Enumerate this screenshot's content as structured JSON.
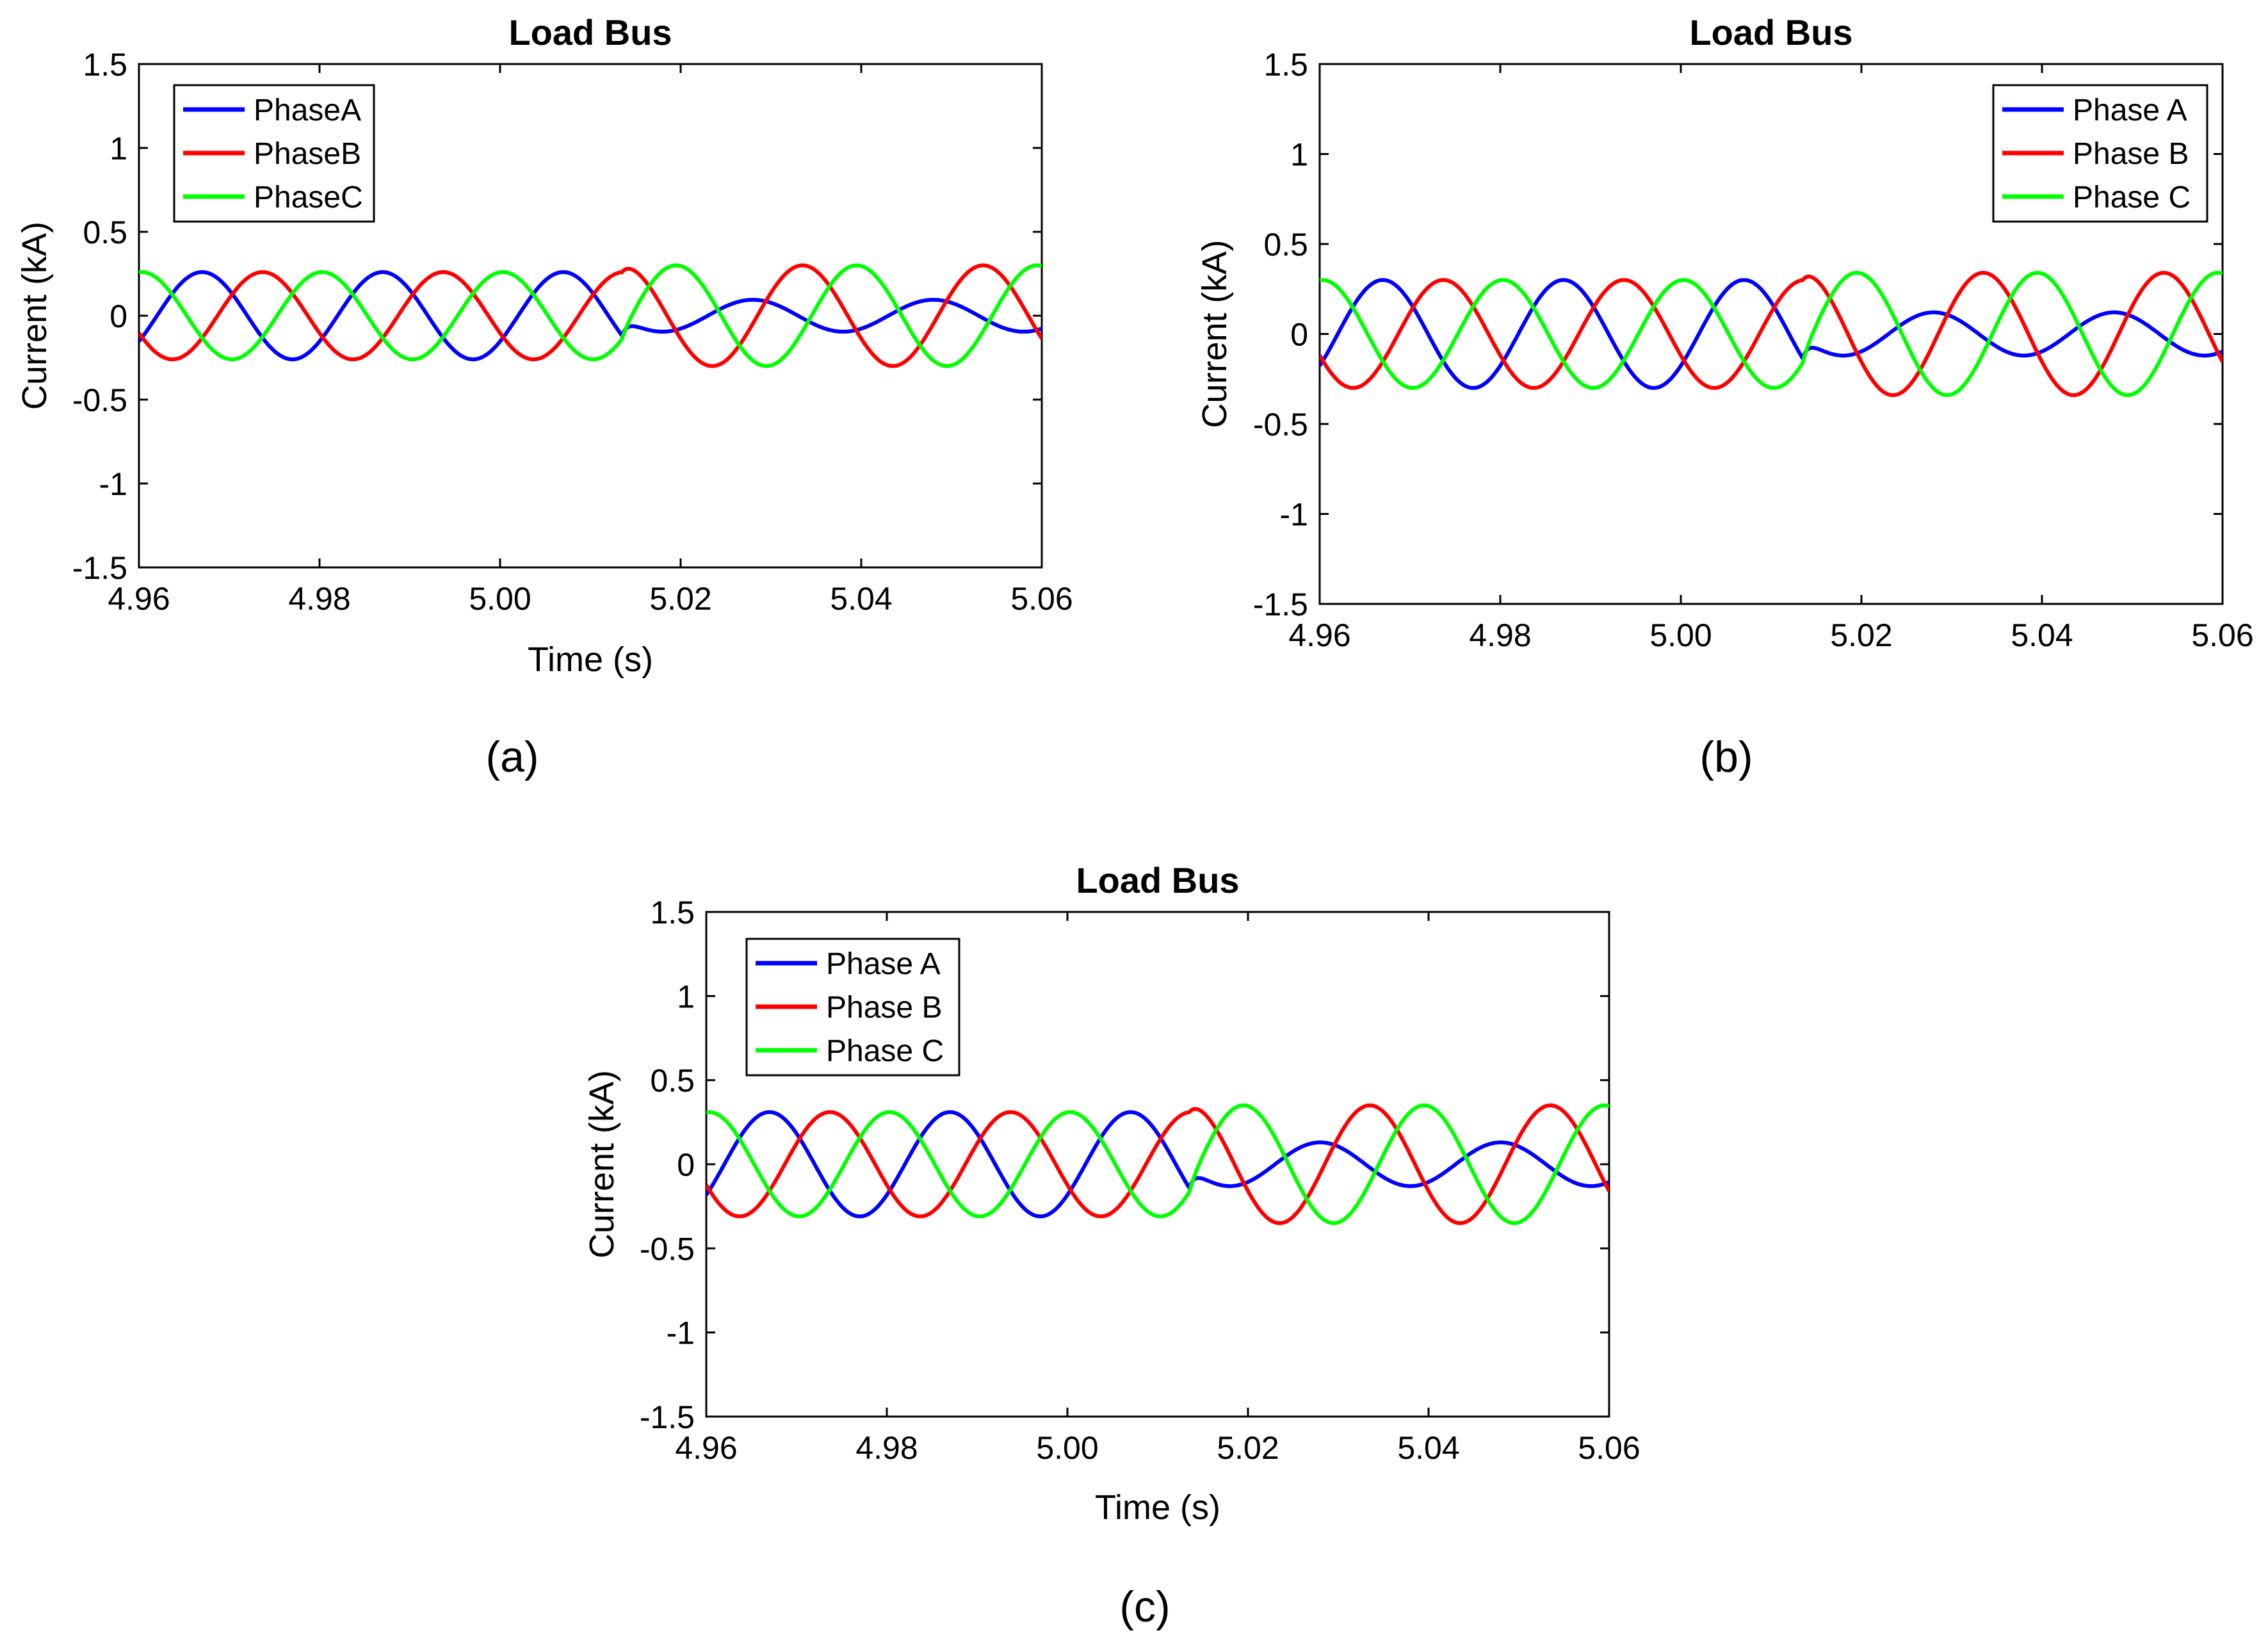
{
  "colors": {
    "phase_a": "#0000ff",
    "phase_b": "#ff0000",
    "phase_c": "#00ff00",
    "axis": "#000000"
  },
  "chart_data": [
    {
      "type": "line",
      "caption": "(a)",
      "title": "Load Bus",
      "xlabel": "Time (s)",
      "ylabel": "Current (kA)",
      "xlim": [
        4.96,
        5.06
      ],
      "ylim": [
        -1.5,
        1.5
      ],
      "x_ticks": [
        "4.96",
        "4.98",
        "5.00",
        "5.02",
        "5.04",
        "5.06"
      ],
      "y_ticks": [
        "1.5",
        "1",
        "0.5",
        "0",
        "-0.5",
        "-1",
        "-1.5"
      ],
      "legend_position": "top-left",
      "legend": [
        "PhaseA",
        "PhaseB",
        "PhaseC"
      ],
      "fault_time": 5.0135,
      "frequency_hz": 50,
      "series": [
        {
          "name": "PhaseA",
          "pre_amplitude": 0.26,
          "post_amplitude": 0.095,
          "first_peak_time": 4.967,
          "post_peak_time": 5.028
        },
        {
          "name": "PhaseB",
          "pre_amplitude": 0.26,
          "post_amplitude": 0.3,
          "first_peak_time": 4.9737,
          "post_peak_time": 5.0335
        },
        {
          "name": "PhaseC",
          "pre_amplitude": 0.26,
          "post_amplitude": 0.3,
          "first_peak_time": 4.9603,
          "post_peak_time": 5.0195
        }
      ]
    },
    {
      "type": "line",
      "caption": "(b)",
      "title": "Load Bus",
      "xlabel": "",
      "ylabel": "Current (kA)",
      "xlim": [
        4.96,
        5.06
      ],
      "ylim": [
        -1.5,
        1.5
      ],
      "x_ticks": [
        "4.96",
        "4.98",
        "5.00",
        "5.02",
        "5.04",
        "5.06"
      ],
      "y_ticks": [
        "1.5",
        "1",
        "0.5",
        "0",
        "-0.5",
        "-1",
        "-1.5"
      ],
      "legend_position": "top-right",
      "legend": [
        "Phase A",
        "Phase B",
        "Phase C"
      ],
      "fault_time": 5.0135,
      "frequency_hz": 50,
      "series": [
        {
          "name": "Phase A",
          "pre_amplitude": 0.3,
          "post_amplitude": 0.12,
          "first_peak_time": 4.967,
          "post_peak_time": 5.028
        },
        {
          "name": "Phase B",
          "pre_amplitude": 0.3,
          "post_amplitude": 0.34,
          "first_peak_time": 4.9737,
          "post_peak_time": 5.0335
        },
        {
          "name": "Phase C",
          "pre_amplitude": 0.3,
          "post_amplitude": 0.34,
          "first_peak_time": 4.9603,
          "post_peak_time": 5.0195
        }
      ]
    },
    {
      "type": "line",
      "caption": "(c)",
      "title": "Load Bus",
      "xlabel": "Time (s)",
      "ylabel": "Current (kA)",
      "xlim": [
        4.96,
        5.06
      ],
      "ylim": [
        -1.5,
        1.5
      ],
      "x_ticks": [
        "4.96",
        "4.98",
        "5.00",
        "5.02",
        "5.04",
        "5.06"
      ],
      "y_ticks": [
        "1.5",
        "1",
        "0.5",
        "0",
        "-0.5",
        "-1",
        "-1.5"
      ],
      "legend_position": "top-left",
      "legend": [
        "Phase A",
        "Phase B",
        "Phase C"
      ],
      "fault_time": 5.0135,
      "frequency_hz": 50,
      "series": [
        {
          "name": "Phase A",
          "pre_amplitude": 0.31,
          "post_amplitude": 0.13,
          "first_peak_time": 4.967,
          "post_peak_time": 5.028
        },
        {
          "name": "Phase B",
          "pre_amplitude": 0.31,
          "post_amplitude": 0.35,
          "first_peak_time": 4.9737,
          "post_peak_time": 5.0335
        },
        {
          "name": "Phase C",
          "pre_amplitude": 0.31,
          "post_amplitude": 0.35,
          "first_peak_time": 4.9603,
          "post_peak_time": 5.0195
        }
      ]
    }
  ]
}
